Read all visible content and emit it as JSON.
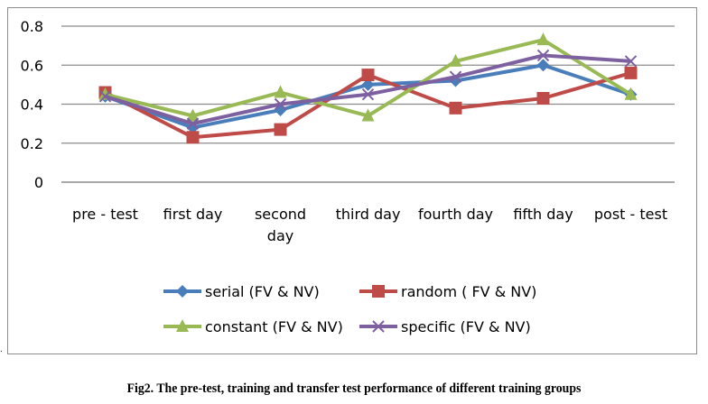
{
  "chart_data": {
    "type": "line",
    "title": "",
    "xlabel": "",
    "ylabel": "",
    "categories": [
      "pre - test",
      "first day",
      "second day",
      "third day",
      "fourth day",
      "fifth day",
      "post - test"
    ],
    "category_lines": [
      [
        "pre - test"
      ],
      [
        "first day"
      ],
      [
        "second",
        "day"
      ],
      [
        "third day"
      ],
      [
        "fourth day"
      ],
      [
        "fifth day"
      ],
      [
        "post - test"
      ]
    ],
    "ylim": [
      0,
      0.8
    ],
    "yticks": [
      "0",
      "0.2",
      "0.4",
      "0.6",
      "0.8"
    ],
    "ytick_values": [
      0,
      0.2,
      0.4,
      0.6,
      0.8
    ],
    "grid": true,
    "legend_position": "bottom",
    "series": [
      {
        "name": "serial (FV & NV)",
        "color": "#4a7ebb",
        "marker": "diamond",
        "values": [
          0.44,
          0.28,
          0.37,
          0.5,
          0.52,
          0.6,
          0.45
        ]
      },
      {
        "name": "random ( FV & NV)",
        "color": "#be4b48",
        "marker": "square",
        "values": [
          0.46,
          0.23,
          0.27,
          0.55,
          0.38,
          0.43,
          0.56
        ]
      },
      {
        "name": "constant (FV & NV)",
        "color": "#98b954",
        "marker": "triangle",
        "values": [
          0.45,
          0.34,
          0.46,
          0.34,
          0.62,
          0.73,
          0.45
        ]
      },
      {
        "name": "specific (FV & NV)",
        "color": "#7d60a0",
        "marker": "x",
        "values": [
          0.44,
          0.3,
          0.4,
          0.45,
          0.54,
          0.65,
          0.62
        ]
      }
    ]
  },
  "caption": "Fig2. The pre-test, training and transfer test performance of different training groups",
  "stray_mark": "."
}
